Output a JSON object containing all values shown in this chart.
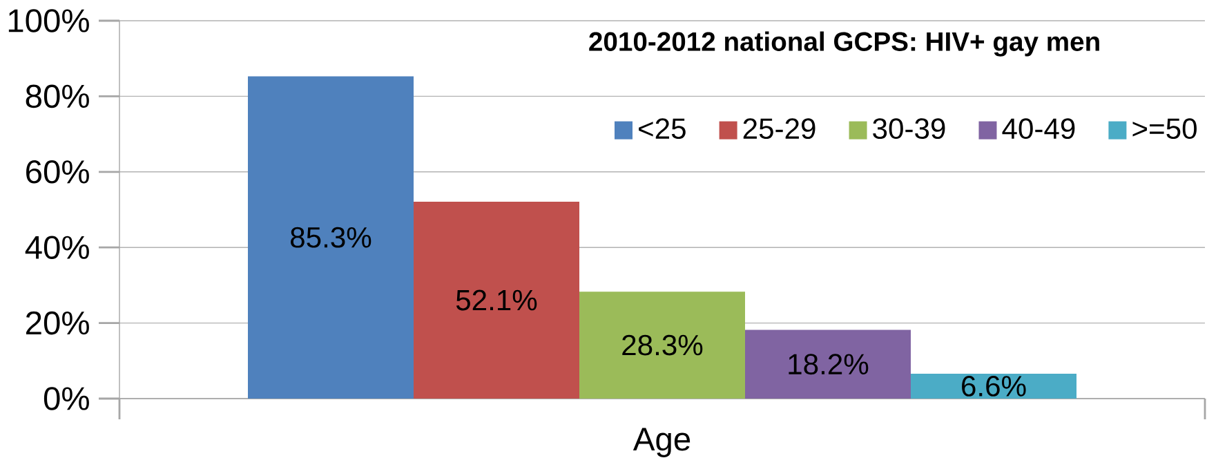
{
  "chart_data": {
    "type": "bar",
    "title": "2010-2012 national GCPS: HIV+ gay men",
    "categories": [
      "Age"
    ],
    "series": [
      {
        "name": "<25",
        "color": "#4f81bd",
        "values": [
          85.3
        ],
        "value_labels": [
          "85.3%"
        ]
      },
      {
        "name": "25-29",
        "color": "#c0504d",
        "values": [
          52.1
        ],
        "value_labels": [
          "52.1%"
        ]
      },
      {
        "name": "30-39",
        "color": "#9bbb59",
        "values": [
          28.3
        ],
        "value_labels": [
          "28.3%"
        ]
      },
      {
        "name": "40-49",
        "color": "#8064a2",
        "values": [
          18.2
        ],
        "value_labels": [
          "18.2%"
        ]
      },
      {
        "name": ">=50",
        "color": "#4bacc6",
        "values": [
          6.6
        ],
        "value_labels": [
          "6.6%"
        ]
      }
    ],
    "ylim": [
      0,
      100
    ],
    "yticks": [
      {
        "value": 0,
        "label": "0%"
      },
      {
        "value": 20,
        "label": "20%"
      },
      {
        "value": 40,
        "label": "40%"
      },
      {
        "value": 60,
        "label": "60%"
      },
      {
        "value": 80,
        "label": "80%"
      },
      {
        "value": 100,
        "label": "100%"
      }
    ],
    "grid": "y",
    "legend": "top right"
  }
}
